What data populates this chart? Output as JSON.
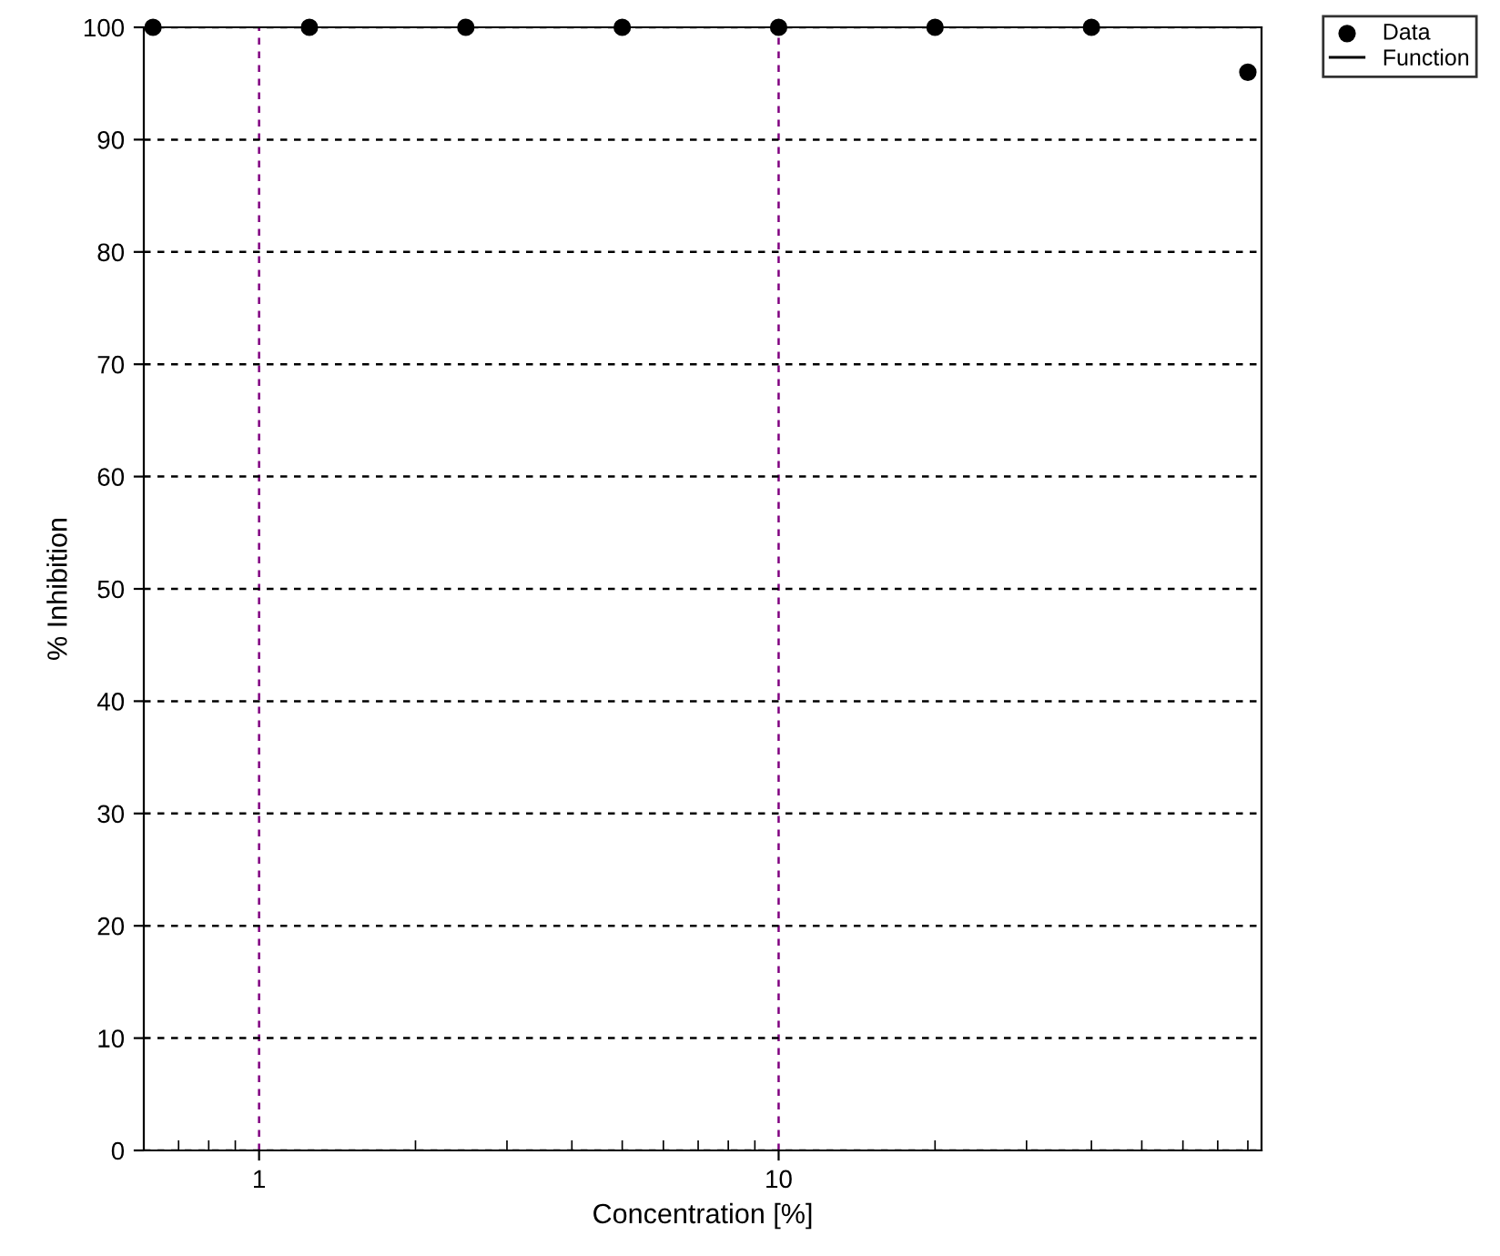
{
  "chart_data": {
    "type": "scatter",
    "xlabel": "Concentration [%]",
    "ylabel": "% Inhibition",
    "x": [
      0.625,
      1.25,
      2.5,
      5,
      10,
      20,
      40,
      80
    ],
    "series": [
      {
        "name": "Data",
        "color": "#000000",
        "marker": "circle",
        "values": [
          100,
          100,
          100,
          100,
          100,
          100,
          100,
          96
        ]
      },
      {
        "name": "Function",
        "type": "line",
        "color": "#000000",
        "line_style": "solid",
        "values": [
          null,
          null,
          null,
          null,
          null,
          null,
          null,
          null
        ]
      }
    ],
    "log": "x",
    "xlim": [
      0.6,
      85
    ],
    "xticks": [
      1,
      10
    ],
    "ylim": [
      0,
      100
    ],
    "yticks": [
      0,
      10,
      20,
      30,
      40,
      50,
      60,
      70,
      80,
      90,
      100
    ],
    "grid": true,
    "legend": "top right"
  }
}
